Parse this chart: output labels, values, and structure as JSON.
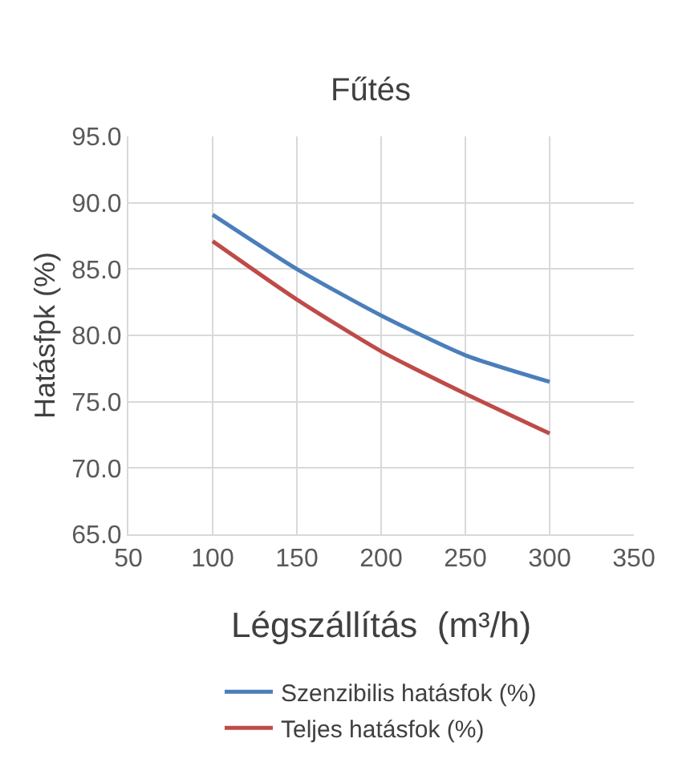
{
  "chart_data": {
    "type": "line",
    "title": "Fűtés",
    "xlabel": "Légszállítás  (m³/h)",
    "ylabel": "Hatásfpk (%)",
    "x": [
      100,
      150,
      200,
      250,
      300
    ],
    "series": [
      {
        "name": "Szenzibilis hatásfok (%)",
        "color": "#4a7ebb",
        "values": [
          89.1,
          85.0,
          81.5,
          78.5,
          76.5
        ]
      },
      {
        "name": "Teljes hatásfok (%)",
        "color": "#be4b48",
        "values": [
          87.1,
          82.7,
          78.8,
          75.6,
          72.6
        ]
      }
    ],
    "xlim": [
      50,
      350
    ],
    "xticks": [
      50,
      100,
      150,
      200,
      250,
      300,
      350
    ],
    "ylim": [
      65,
      95
    ],
    "yticks": [
      {
        "value": 65,
        "label": "65.0"
      },
      {
        "value": 70,
        "label": "70.0"
      },
      {
        "value": 75,
        "label": "75.0"
      },
      {
        "value": 80,
        "label": "80.0"
      },
      {
        "value": 85,
        "label": "85.0"
      },
      {
        "value": 90,
        "label": "90.0"
      },
      {
        "value": 95,
        "label": "95.0"
      }
    ],
    "grid": true,
    "legend": "bottom",
    "marker": "none",
    "line_style": "solid"
  }
}
